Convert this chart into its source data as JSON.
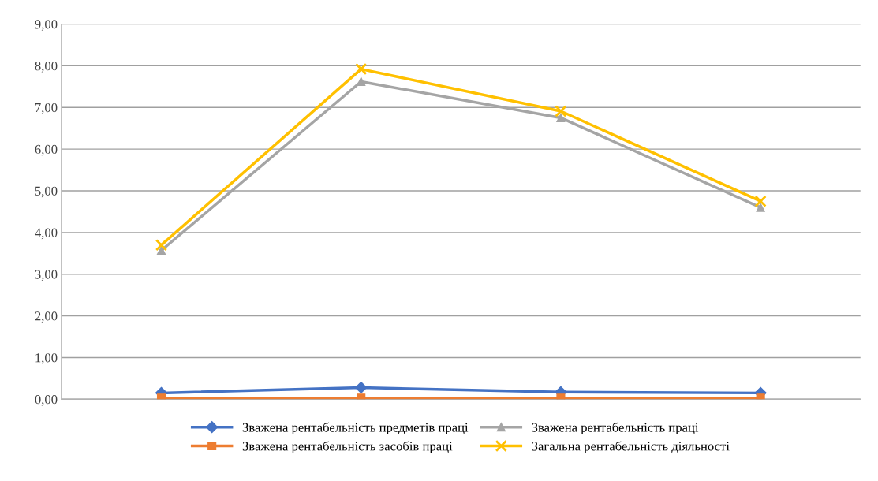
{
  "chart_data": {
    "type": "line",
    "categories": [
      null,
      null,
      null,
      null
    ],
    "series": [
      {
        "name": "Зважена рентабельність предметів праці",
        "color": "#4472c4",
        "marker": "diamond",
        "values": [
          0.15,
          0.28,
          0.17,
          0.15
        ]
      },
      {
        "name": "Зважена рентабельність засобів праці",
        "color": "#ed7d31",
        "marker": "square",
        "values": [
          0.03,
          0.03,
          0.03,
          0.03
        ]
      },
      {
        "name": "Зважена рентабельність праці",
        "color": "#a5a5a5",
        "marker": "triangle",
        "values": [
          3.57,
          7.62,
          6.75,
          4.6
        ]
      },
      {
        "name": "Загальна рентабельність діяльності",
        "color": "#ffc000",
        "marker": "cross",
        "values": [
          3.7,
          7.92,
          6.91,
          4.75
        ]
      }
    ],
    "ylim": [
      0,
      9
    ],
    "yticks": [
      {
        "value": 0,
        "label": "0,00"
      },
      {
        "value": 1,
        "label": "1,00"
      },
      {
        "value": 2,
        "label": "2,00"
      },
      {
        "value": 3,
        "label": "3,00"
      },
      {
        "value": 4,
        "label": "4,00"
      },
      {
        "value": 5,
        "label": "5,00"
      },
      {
        "value": 6,
        "label": "6,00"
      },
      {
        "value": 7,
        "label": "7,00"
      },
      {
        "value": 8,
        "label": "8,00"
      },
      {
        "value": 9,
        "label": "9,00"
      }
    ],
    "grid": "y",
    "legend": "bottom",
    "line_style": "solid"
  }
}
